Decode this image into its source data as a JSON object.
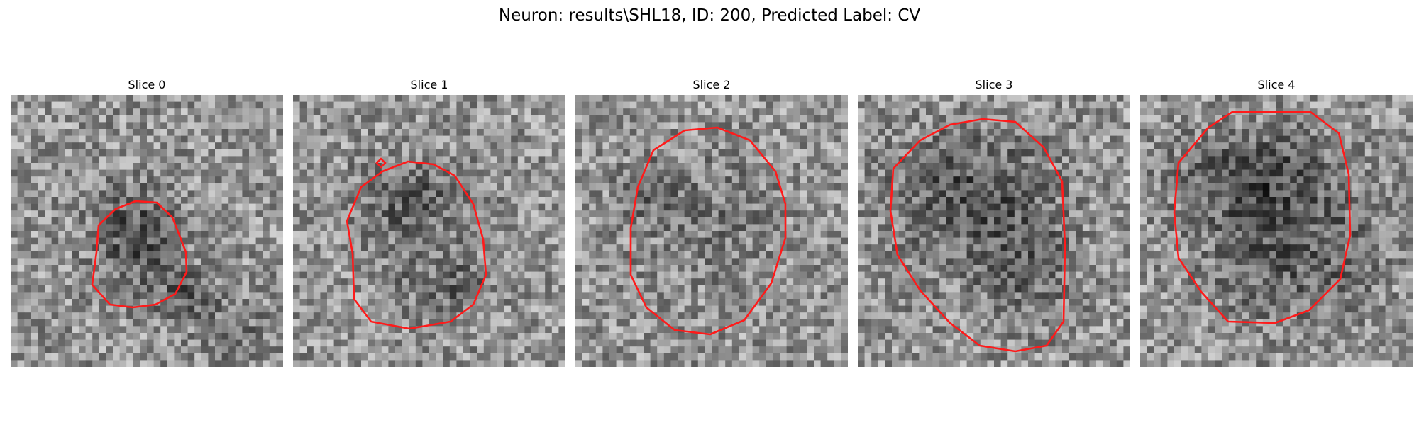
{
  "figure": {
    "title": "Neuron: results\\SHL18, ID: 200, Predicted Label: CV"
  },
  "colors": {
    "contour": "#ff1a1a",
    "background": "#ffffff"
  },
  "slices": [
    {
      "title": "Slice 0"
    },
    {
      "title": "Slice 1"
    },
    {
      "title": "Slice 2"
    },
    {
      "title": "Slice 3"
    },
    {
      "title": "Slice 4"
    }
  ]
}
